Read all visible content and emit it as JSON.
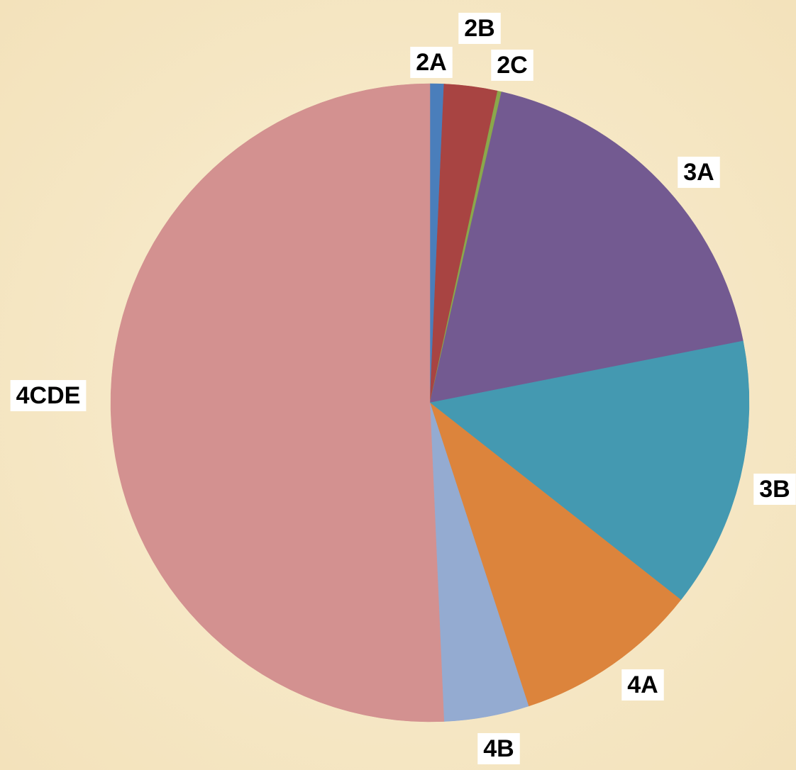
{
  "chart_data": {
    "type": "pie",
    "categories": [
      "2A",
      "2B",
      "2C",
      "3A",
      "3B",
      "4A",
      "4B",
      "4CDE"
    ],
    "values": [
      0.7,
      2.7,
      0.2,
      18.3,
      13.7,
      9.4,
      4.3,
      50.7
    ],
    "colors": [
      "#4a7ebb",
      "#a84442",
      "#8aa84b",
      "#735a91",
      "#4499b1",
      "#dc843c",
      "#94abd1",
      "#d39190"
    ]
  }
}
